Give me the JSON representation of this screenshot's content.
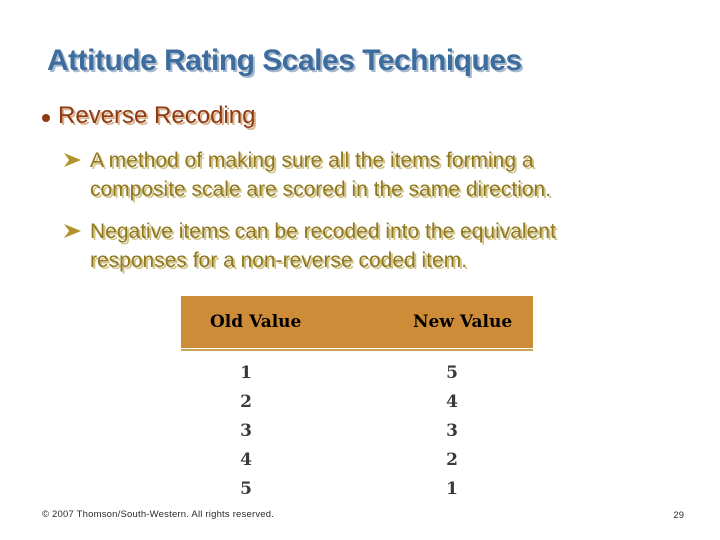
{
  "slide": {
    "title": "Attitude Rating Scales Techniques",
    "bullets": {
      "main": "Reverse Recoding",
      "sub": [
        "A method of making sure all the items forming a\ncomposite scale are scored in the same direction.",
        "Negative items can be recoded into the equivalent\nresponses for a non-reverse coded item."
      ]
    },
    "table": {
      "headers": [
        "Old Value",
        "New Value"
      ],
      "rows": [
        [
          "1",
          "5"
        ],
        [
          "2",
          "4"
        ],
        [
          "3",
          "3"
        ],
        [
          "4",
          "2"
        ],
        [
          "5",
          "1"
        ]
      ],
      "row_tops": [
        363,
        392,
        421,
        450,
        479
      ]
    },
    "footer": {
      "copyright": "© 2007 Thomson/South-Western. All rights reserved.",
      "page_number": "29"
    }
  },
  "icons": {
    "main_bullet": "circle-bullet",
    "sub_bullet": "arrowhead-right"
  },
  "colors": {
    "background": "#FFFFFF",
    "title": "#3D6D9E",
    "title_shadow": "#A9B9CB",
    "bullet_main": "#8E3A14",
    "bullet_main_shadow": "#D9B38B",
    "bullet_sub": "#8F7820",
    "bullet_sub_shadow": "#D2C286",
    "arrow_gold": "#B2922A",
    "table_header_bg": "#CE8C38",
    "table_header_text": "#000000",
    "table_rule": "#C9A558",
    "table_digits": "#3A3A3A",
    "footer_text": "#2B2B2B"
  }
}
